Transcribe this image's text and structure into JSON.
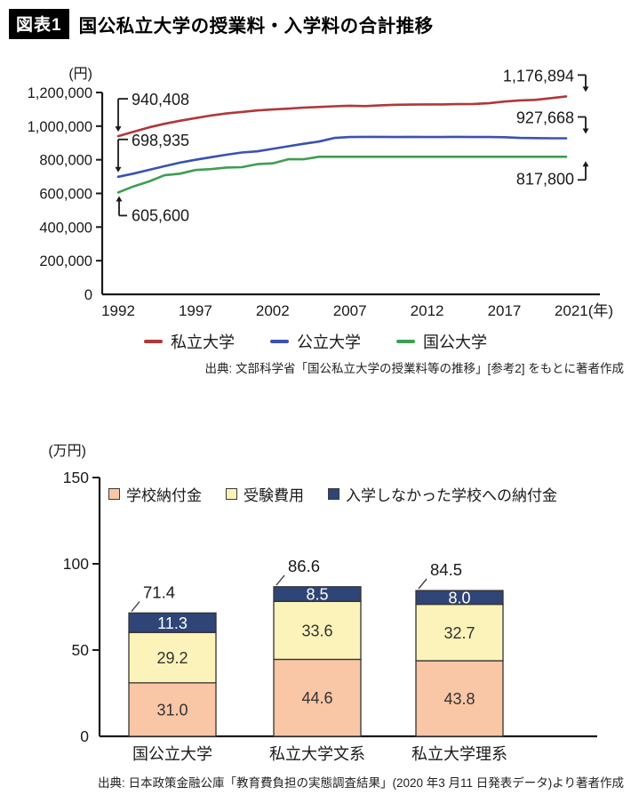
{
  "page": {
    "title_badge": "図表1",
    "title": "国公私立大学の授業料・入学料の合計推移"
  },
  "chart_data": [
    {
      "type": "line",
      "unit_label": "(円)",
      "ylim": [
        0,
        1200000
      ],
      "y_ticks": [
        {
          "v": 0,
          "label": "0"
        },
        {
          "v": 200000,
          "label": "200,000"
        },
        {
          "v": 400000,
          "label": "400,000"
        },
        {
          "v": 600000,
          "label": "600,000"
        },
        {
          "v": 800000,
          "label": "800,000"
        },
        {
          "v": 1000000,
          "label": "1,000,000"
        },
        {
          "v": 1200000,
          "label": "1,200,000"
        }
      ],
      "x_start_year": 1992,
      "x_end_year": 2021,
      "x_ticks": [
        {
          "year": 1992,
          "label": "1992"
        },
        {
          "year": 1997,
          "label": "1997"
        },
        {
          "year": 2002,
          "label": "2002"
        },
        {
          "year": 2007,
          "label": "2007"
        },
        {
          "year": 2012,
          "label": "2012"
        },
        {
          "year": 2017,
          "label": "2017"
        },
        {
          "year": 2021,
          "label": "2021(年)"
        }
      ],
      "series": [
        {
          "name": "私立大学",
          "color": "#b23739",
          "values": [
            940408,
            967000,
            993000,
            1014000,
            1032000,
            1048000,
            1063000,
            1075000,
            1084000,
            1093000,
            1099000,
            1104000,
            1110000,
            1114000,
            1118000,
            1121000,
            1119000,
            1124000,
            1127000,
            1128000,
            1129000,
            1129000,
            1131000,
            1132000,
            1136000,
            1146000,
            1153000,
            1156000,
            1166000,
            1176894
          ]
        },
        {
          "name": "公立大学",
          "color": "#3b51b4",
          "values": [
            698935,
            718000,
            740000,
            762000,
            783000,
            800000,
            815000,
            830000,
            843000,
            850000,
            865000,
            880000,
            895000,
            908000,
            930000,
            935000,
            936000,
            936000,
            935000,
            936000,
            935000,
            935000,
            936000,
            935000,
            935000,
            934000,
            930000,
            929000,
            928000,
            927668
          ]
        },
        {
          "name": "国公大学",
          "color": "#3e9e51",
          "values": [
            605600,
            641600,
            671600,
            707600,
            717600,
            739200,
            744200,
            753800,
            755800,
            773800,
            778800,
            802800,
            802800,
            817800,
            817800,
            817800,
            817800,
            817800,
            817800,
            817800,
            817800,
            817800,
            817800,
            817800,
            817800,
            817800,
            817800,
            817800,
            817800,
            817800
          ]
        }
      ],
      "annotations": [
        {
          "text": "940,408",
          "series": 0,
          "at": "start",
          "dir": "down"
        },
        {
          "text": "698,935",
          "series": 1,
          "at": "start",
          "dir": "down"
        },
        {
          "text": "605,600",
          "series": 2,
          "at": "start",
          "dir": "up"
        },
        {
          "text": "1,176,894",
          "series": 0,
          "at": "end",
          "dir": "down"
        },
        {
          "text": "927,668",
          "series": 1,
          "at": "end",
          "dir": "down"
        },
        {
          "text": "817,800",
          "series": 2,
          "at": "end",
          "dir": "up"
        }
      ],
      "source": "出典: 文部科学省「国公私立大学の授業料等の推移」[参考2] をもとに著者作成"
    },
    {
      "type": "stacked-bar",
      "unit_label": "(万円)",
      "ylim": [
        0,
        150
      ],
      "y_ticks": [
        {
          "v": 0,
          "label": "0"
        },
        {
          "v": 50,
          "label": "50"
        },
        {
          "v": 100,
          "label": "100"
        },
        {
          "v": 150,
          "label": "150"
        }
      ],
      "categories": [
        "国公立大学",
        "私立大学文系",
        "私立大学理系"
      ],
      "totals": [
        71.4,
        86.6,
        84.5
      ],
      "series": [
        {
          "name": "学校納付金",
          "color": "#f9c6a6",
          "text_color": "#333333",
          "values": [
            31.0,
            44.6,
            43.8
          ]
        },
        {
          "name": "受験費用",
          "color": "#fbf3b9",
          "text_color": "#333333",
          "values": [
            29.2,
            33.6,
            32.7
          ]
        },
        {
          "name": "入学しなかった学校への納付金",
          "color": "#2f4577",
          "text_color": "#ffffff",
          "values": [
            11.3,
            8.5,
            8.0
          ]
        }
      ],
      "source": "出典: 日本政策金融公庫「教育費負担の実態調査結果」(2020 年3 月11 日発表データ)より著者作成"
    }
  ]
}
